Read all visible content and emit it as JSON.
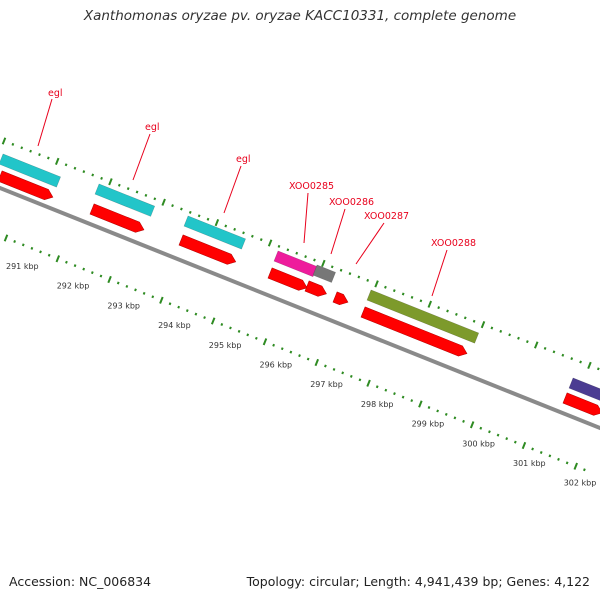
{
  "header": {
    "title": "Xanthomonas oryzae pv. oryzae KACC10331, complete genome"
  },
  "footer": {
    "accession": "Accession: NC_006834",
    "summary": "Topology: circular; Length: 4,941,439 bp; Genes: 4,122"
  },
  "scale": {
    "ticks": [
      "291 kbp",
      "292 kbp",
      "293 kbp",
      "294 kbp",
      "295 kbp",
      "296 kbp",
      "297 kbp",
      "298 kbp",
      "299 kbp",
      "300 kbp",
      "301 kbp",
      "302 kbp"
    ]
  },
  "features": [
    {
      "label": "egl",
      "type": "CDS-with-product"
    },
    {
      "label": "egl",
      "type": "CDS-with-product"
    },
    {
      "label": "egl",
      "type": "CDS-with-product"
    },
    {
      "label": "XOO0285",
      "type": "CDS-with-product"
    },
    {
      "label": "XOO0286",
      "type": "CDS"
    },
    {
      "label": "XOO0287",
      "type": "CDS"
    },
    {
      "label": "XOO0288",
      "type": "CDS-with-product"
    }
  ],
  "colors": {
    "backbone": "#7a7a7a",
    "tick": "#2e8b22",
    "cds": "#ff0000",
    "label": "#e8001c",
    "product_cyan": "#22c5c9",
    "product_magenta": "#ee1c9c",
    "product_gray": "#777777",
    "product_olive": "#7d9a2b",
    "product_purple": "#4b3c92"
  }
}
